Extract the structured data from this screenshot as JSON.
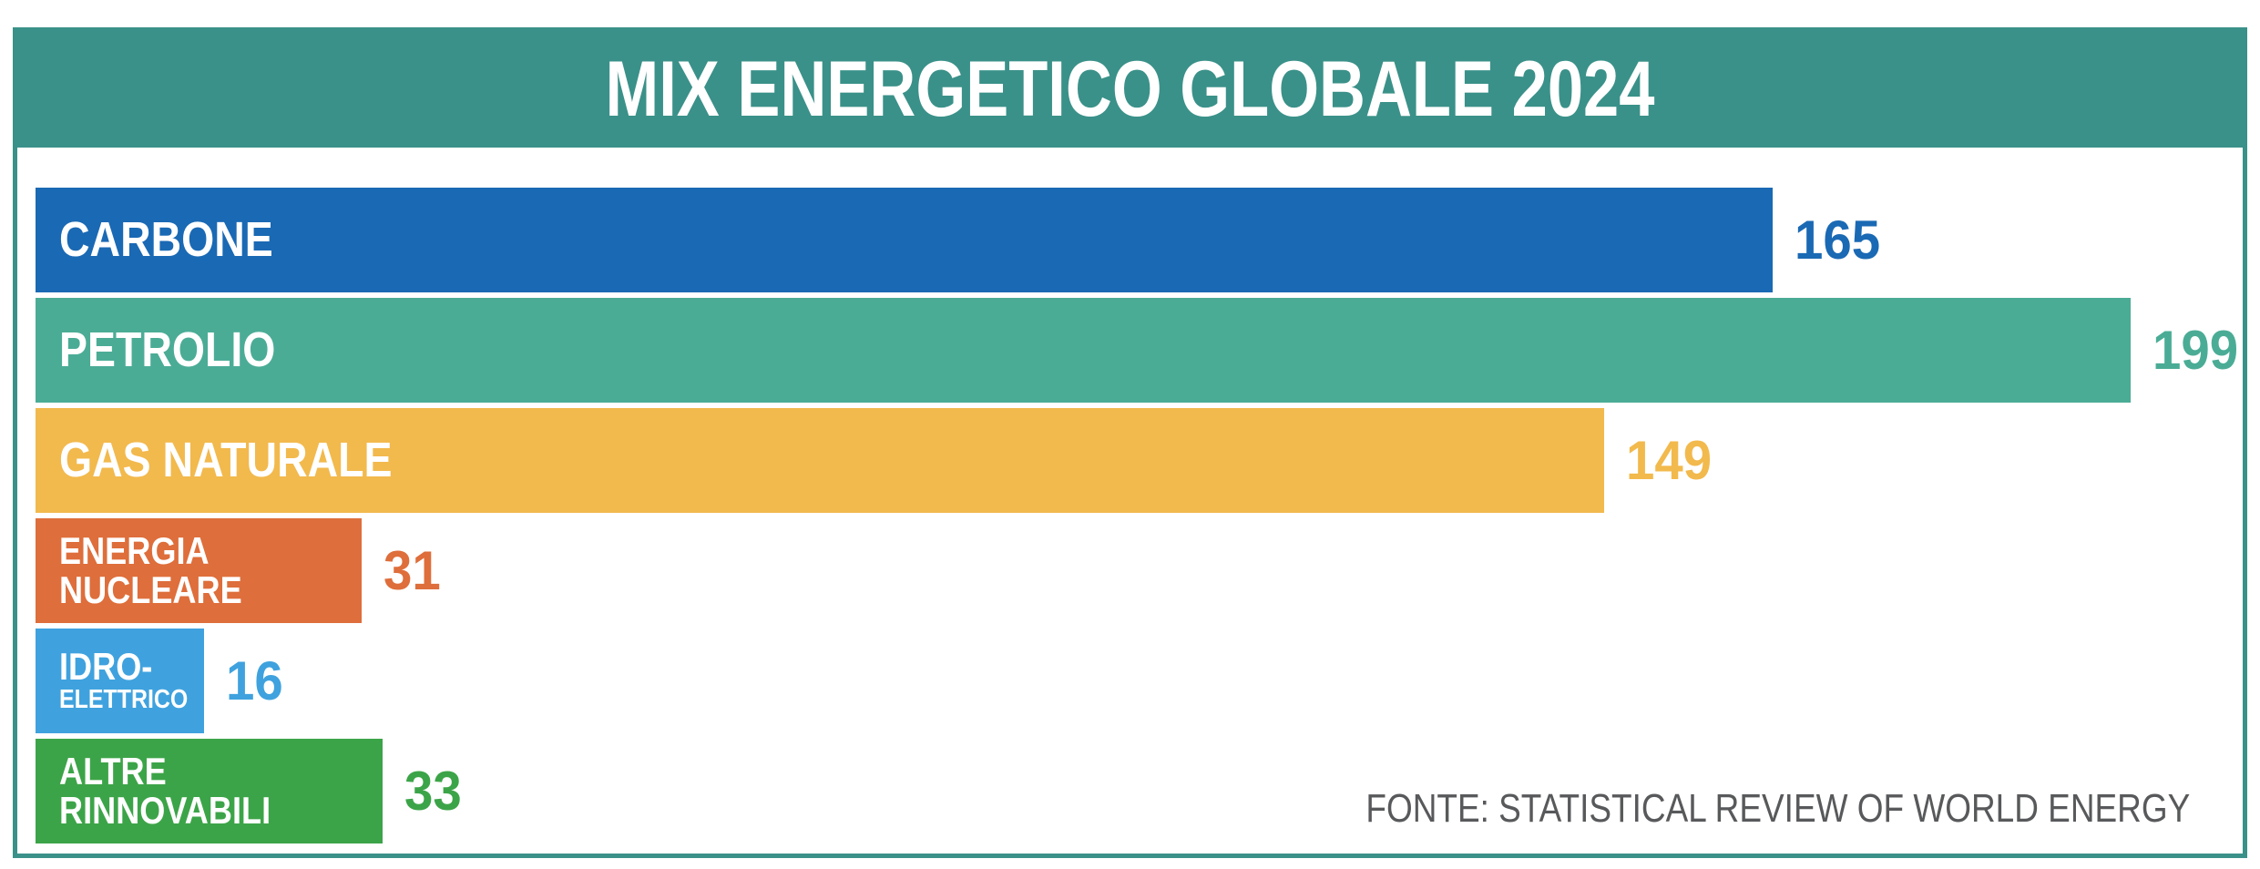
{
  "header": {
    "title": "MIX ENERGETICO GLOBALE 2024"
  },
  "footer": {
    "source": "FONTE: STATISTICAL REVIEW OF WORLD ENERGY"
  },
  "colors": {
    "frame_and_header_teal": "#3A9189",
    "title_text": "#FFFFFF",
    "source_text": "#58595B",
    "background": "#FFFFFF"
  },
  "chart_data": {
    "type": "bar",
    "orientation": "horizontal",
    "title": "MIX ENERGETICO GLOBALE 2024",
    "categories": [
      "CARBONE",
      "PETROLIO",
      "GAS NATURALE",
      "ENERGIA NUCLEARE",
      "IDRO-ELETTRICO",
      "ALTRE RINNOVABILI"
    ],
    "values": [
      165,
      199,
      149,
      31,
      16,
      33
    ],
    "bar_colors": [
      "#1A69B4",
      "#4BAC96",
      "#F2B94D",
      "#DE6E3B",
      "#3FA2DE",
      "#3CA448"
    ],
    "value_labels_shown": true,
    "xlim": [
      0,
      210
    ],
    "grid": false,
    "legend": false,
    "source": "FONTE: STATISTICAL REVIEW OF WORLD ENERGY",
    "bars": [
      {
        "name": "carbone",
        "label_lines": [
          "CARBONE"
        ],
        "value": 165,
        "color": "#1A69B4",
        "second_line_small": false
      },
      {
        "name": "petrolio",
        "label_lines": [
          "PETROLIO"
        ],
        "value": 199,
        "color": "#4BAC96",
        "second_line_small": false
      },
      {
        "name": "gas-naturale",
        "label_lines": [
          "GAS NATURALE"
        ],
        "value": 149,
        "color": "#F2B94D",
        "second_line_small": false
      },
      {
        "name": "energia-nucleare",
        "label_lines": [
          "ENERGIA",
          "NUCLEARE"
        ],
        "value": 31,
        "color": "#DE6E3B",
        "second_line_small": false
      },
      {
        "name": "idroelettrico",
        "label_lines": [
          "IDRO-",
          "ELETTRICO"
        ],
        "value": 16,
        "color": "#3FA2DE",
        "second_line_small": true
      },
      {
        "name": "altre-rinnovabili",
        "label_lines": [
          "ALTRE",
          "RINNOVABILI"
        ],
        "value": 33,
        "color": "#3CA448",
        "second_line_small": false
      }
    ]
  }
}
